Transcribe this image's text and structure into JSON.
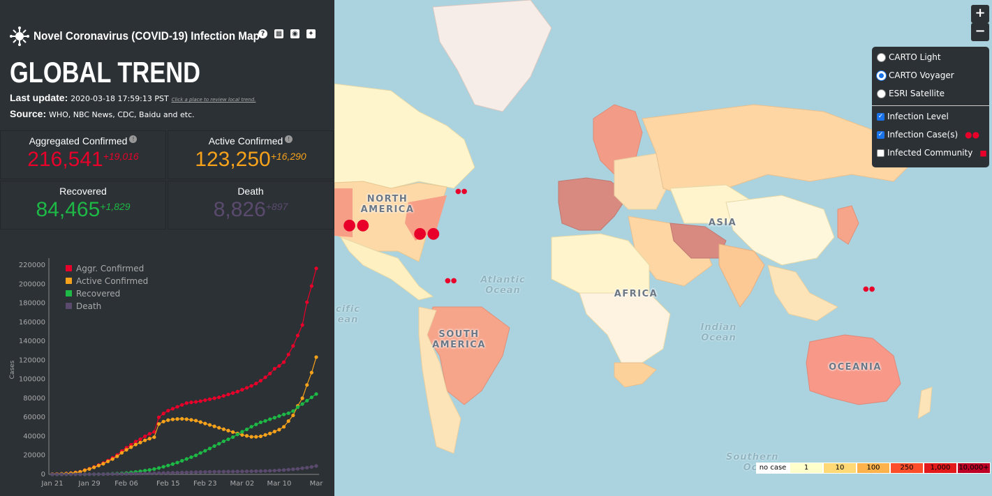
{
  "app": {
    "title": "Novel Coronavirus (COVID-19) Infection Map",
    "heading": "GLOBAL TREND",
    "last_update_label": "Last update:",
    "last_update_value": "2020-03-18 17:59:13 PST",
    "hint": "Click a place to review local trend.",
    "source_label": "Source:",
    "source_value": "WHO, NBC News, CDC, Baidu and etc.",
    "header_icons": [
      "help-icon",
      "keyboard-icon",
      "github-icon",
      "twitter-icon"
    ]
  },
  "stats": {
    "aggregated": {
      "label": "Aggregated Confirmed",
      "value": "216,541",
      "delta": "+19,016",
      "color": "#e8002a"
    },
    "active": {
      "label": "Active Confirmed",
      "value": "123,250",
      "delta": "+16,290",
      "color": "#f7a21b"
    },
    "recovered": {
      "label": "Recovered",
      "value": "84,465",
      "delta": "+1,829",
      "color": "#1db845"
    },
    "death": {
      "label": "Death",
      "value": "8,826",
      "delta": "+897",
      "color": "#5a4a6e"
    }
  },
  "layers": {
    "basemaps": [
      {
        "label": "CARTO Light",
        "checked": false
      },
      {
        "label": "CARTO Voyager",
        "checked": true
      },
      {
        "label": "ESRI Satellite",
        "checked": false
      }
    ],
    "overlays": [
      {
        "label": "Infection Level",
        "checked": true
      },
      {
        "label": "Infection Case(s)",
        "checked": true
      },
      {
        "label": "Infected Community",
        "checked": false
      }
    ]
  },
  "zoom": {
    "in": "+",
    "out": "−"
  },
  "map_labels": {
    "north_america": "NORTH AMERICA",
    "south_america": "SOUTH AMERICA",
    "africa": "AFRICA",
    "asia": "ASIA",
    "oceania": "OCEANIA",
    "atlantic": "Atlantic Ocean",
    "indian": "Indian Ocean",
    "pacific": "cific ean",
    "southern": "Southern Oc"
  },
  "legend": {
    "items": [
      {
        "label": "no case",
        "color": "#ffffff"
      },
      {
        "label": "1",
        "color": "#ffffcc"
      },
      {
        "label": "10",
        "color": "#fed976"
      },
      {
        "label": "100",
        "color": "#feb24c"
      },
      {
        "label": "250",
        "color": "#fc4e2a"
      },
      {
        "label": "1,000",
        "color": "#e31a1c"
      },
      {
        "label": "10,000+",
        "color": "#bd0026"
      }
    ]
  },
  "chart_data": {
    "type": "line",
    "title": "",
    "xlabel": "",
    "ylabel": "Cases",
    "ylim": [
      0,
      220000
    ],
    "yticks": [
      0,
      20000,
      40000,
      60000,
      80000,
      100000,
      120000,
      140000,
      160000,
      180000,
      200000,
      220000
    ],
    "xticks": [
      "Jan 21",
      "Jan 29",
      "Feb 06",
      "Feb 15",
      "Feb 23",
      "Mar 02",
      "Mar 10",
      "Mar"
    ],
    "legend_position": "top-left",
    "x": [
      "Jan 21",
      "Jan 22",
      "Jan 23",
      "Jan 24",
      "Jan 25",
      "Jan 26",
      "Jan 27",
      "Jan 28",
      "Jan 29",
      "Jan 30",
      "Jan 31",
      "Feb 01",
      "Feb 02",
      "Feb 03",
      "Feb 04",
      "Feb 05",
      "Feb 06",
      "Feb 07",
      "Feb 08",
      "Feb 09",
      "Feb 10",
      "Feb 11",
      "Feb 12",
      "Feb 13",
      "Feb 14",
      "Feb 15",
      "Feb 16",
      "Feb 17",
      "Feb 18",
      "Feb 19",
      "Feb 20",
      "Feb 21",
      "Feb 22",
      "Feb 23",
      "Feb 24",
      "Feb 25",
      "Feb 26",
      "Feb 27",
      "Feb 28",
      "Feb 29",
      "Mar 01",
      "Mar 02",
      "Mar 03",
      "Mar 04",
      "Mar 05",
      "Mar 06",
      "Mar 07",
      "Mar 08",
      "Mar 09",
      "Mar 10",
      "Mar 11",
      "Mar 12",
      "Mar 13",
      "Mar 14",
      "Mar 15",
      "Mar 16",
      "Mar 17",
      "Mar 18"
    ],
    "series": [
      {
        "name": "Aggr. Confirmed",
        "color": "#e8002a",
        "values": [
          300,
          450,
          600,
          900,
          1300,
          2000,
          2800,
          4500,
          6000,
          7800,
          9800,
          11900,
          14500,
          17300,
          20400,
          24500,
          28000,
          31200,
          34500,
          37000,
          40000,
          42600,
          44700,
          60000,
          64000,
          67000,
          69000,
          71000,
          73000,
          75000,
          75700,
          76200,
          77000,
          78000,
          79000,
          80000,
          81000,
          82500,
          84000,
          85500,
          87000,
          89000,
          91000,
          93000,
          95500,
          98500,
          102000,
          106000,
          111000,
          114000,
          118000,
          126000,
          135000,
          146000,
          157000,
          181000,
          198000,
          216541
        ]
      },
      {
        "name": "Active Confirmed",
        "color": "#f7a21b",
        "values": [
          280,
          420,
          560,
          850,
          1200,
          1900,
          2700,
          4300,
          5700,
          7400,
          9300,
          11200,
          13600,
          16100,
          19000,
          22700,
          25800,
          28600,
          31400,
          33500,
          35800,
          37600,
          39100,
          53000,
          55500,
          57000,
          57800,
          58200,
          58400,
          58000,
          57300,
          56500,
          55000,
          53500,
          52000,
          50500,
          49000,
          47500,
          46000,
          44500,
          43000,
          41500,
          40500,
          39500,
          39500,
          40000,
          41500,
          43000,
          45000,
          47000,
          50000,
          56000,
          62000,
          72000,
          80000,
          94000,
          107000,
          123250
        ]
      },
      {
        "name": "Recovered",
        "color": "#1db845",
        "values": [
          0,
          0,
          0,
          30,
          40,
          50,
          60,
          100,
          120,
          140,
          220,
          280,
          470,
          620,
          850,
          1100,
          1500,
          2000,
          2600,
          3200,
          4000,
          4700,
          5600,
          6700,
          8000,
          9400,
          10800,
          12400,
          14300,
          16200,
          18100,
          20000,
          22500,
          24800,
          27200,
          29800,
          32200,
          34800,
          36900,
          39200,
          42000,
          44800,
          47300,
          50100,
          52500,
          54700,
          56200,
          58000,
          59600,
          61300,
          63000,
          64300,
          66600,
          70600,
          74000,
          77500,
          81000,
          84465
        ]
      },
      {
        "name": "Death",
        "color": "#5a4a6e",
        "values": [
          6,
          9,
          17,
          26,
          42,
          56,
          82,
          131,
          133,
          171,
          213,
          259,
          362,
          426,
          492,
          565,
          638,
          724,
          813,
          910,
          1018,
          1115,
          1261,
          1383,
          1526,
          1669,
          1775,
          1873,
          2009,
          2126,
          2247,
          2360,
          2460,
          2618,
          2699,
          2763,
          2800,
          2858,
          2923,
          2977,
          3050,
          3110,
          3200,
          3285,
          3383,
          3495,
          3600,
          3800,
          4000,
          4300,
          4600,
          5000,
          5400,
          5800,
          6500,
          7100,
          7900,
          8826
        ]
      }
    ]
  }
}
